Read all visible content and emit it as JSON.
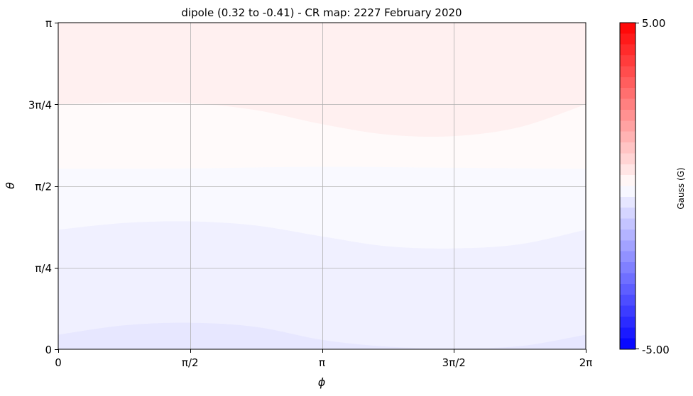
{
  "chart_data": {
    "type": "heatmap",
    "title": "dipole (0.32 to -0.41) - CR map: 2227 February 2020",
    "xlabel": "ϕ",
    "ylabel": "θ",
    "xlim": [
      0,
      6.283185
    ],
    "ylim": [
      0,
      3.141593
    ],
    "x_ticks": [
      {
        "value": 0,
        "label": "0"
      },
      {
        "value": 1.570796,
        "label": "π/2"
      },
      {
        "value": 3.141593,
        "label": "π"
      },
      {
        "value": 4.712389,
        "label": "3π/2"
      },
      {
        "value": 6.283185,
        "label": "2π"
      }
    ],
    "y_ticks": [
      {
        "value": 0,
        "label": "0"
      },
      {
        "value": 0.785398,
        "label": "π/4"
      },
      {
        "value": 1.570796,
        "label": "π/2"
      },
      {
        "value": 2.356194,
        "label": "3π/4"
      },
      {
        "value": 3.141593,
        "label": "π"
      }
    ],
    "grid": true,
    "colormap": "bwr",
    "colors": {
      "low": "#0000ff",
      "mid": "#ffffff",
      "high": "#ff0000"
    },
    "colorbar": {
      "label": "Gauss (G)",
      "min": -5.0,
      "max": 5.0,
      "min_label": "-5.00",
      "max_label": "5.00",
      "levels": 30
    },
    "field_range": {
      "max": 0.32,
      "min": -0.41
    },
    "contour_bands": [
      {
        "value": 0.32,
        "color": "#fff0f0",
        "lower_boundary": [
          [
            0,
            2.356
          ],
          [
            0.785,
            2.373
          ],
          [
            1.571,
            2.367
          ],
          [
            2.356,
            2.3
          ],
          [
            3.142,
            2.165
          ],
          [
            3.927,
            2.064
          ],
          [
            4.712,
            2.05
          ],
          [
            5.498,
            2.137
          ],
          [
            6.283,
            2.356
          ]
        ]
      },
      {
        "value": 0.0,
        "color": "#fffafa",
        "lower_boundary": [
          [
            0,
            1.736
          ],
          [
            1.571,
            1.74
          ],
          [
            3.142,
            1.755
          ],
          [
            4.712,
            1.745
          ],
          [
            6.283,
            1.736
          ]
        ]
      },
      {
        "value": -0.08,
        "color": "#f9f9ff",
        "lower_boundary": [
          [
            0,
            1.15
          ],
          [
            0.785,
            1.215
          ],
          [
            1.571,
            1.23
          ],
          [
            2.356,
            1.19
          ],
          [
            3.142,
            1.085
          ],
          [
            3.927,
            0.99
          ],
          [
            4.712,
            0.97
          ],
          [
            5.498,
            1.01
          ],
          [
            6.283,
            1.15
          ]
        ]
      },
      {
        "value": -0.25,
        "color": "#f0f0ff",
        "lower_boundary": [
          [
            0,
            0.14
          ],
          [
            0.785,
            0.23
          ],
          [
            1.571,
            0.255
          ],
          [
            2.356,
            0.215
          ],
          [
            3.142,
            0.09
          ],
          [
            3.927,
            0.025
          ],
          [
            4.712,
            0.01
          ],
          [
            5.498,
            0.03
          ],
          [
            6.283,
            0.14
          ]
        ]
      },
      {
        "value": -0.41,
        "color": "#e7e7ff",
        "lower_boundary": [
          [
            0,
            0
          ],
          [
            6.283,
            0
          ]
        ]
      }
    ]
  }
}
